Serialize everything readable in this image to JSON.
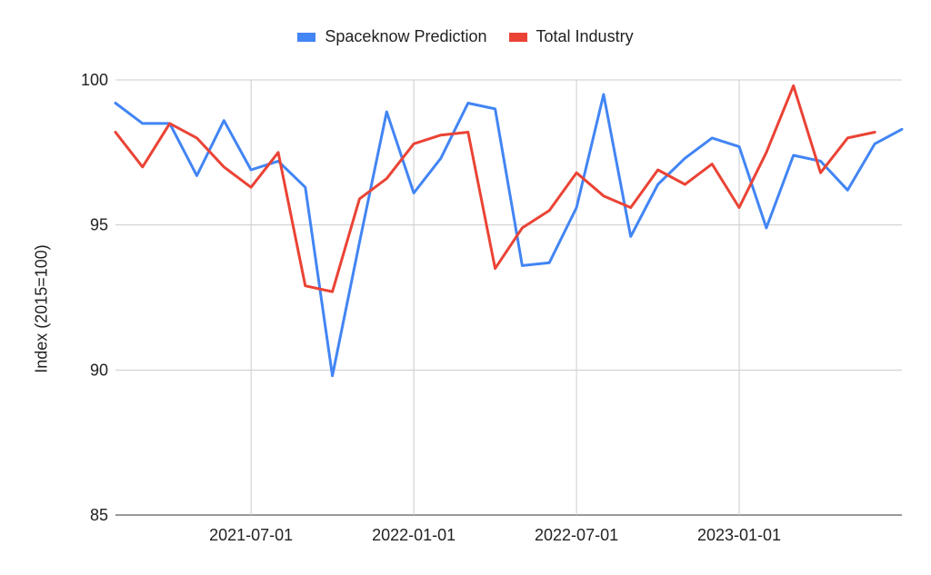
{
  "chart_data": {
    "type": "line",
    "title": "",
    "xlabel": "",
    "ylabel": "Index (2015=100)",
    "ylim": [
      85,
      100
    ],
    "yticks": [
      85,
      90,
      95,
      100
    ],
    "xtick_labels": [
      "2021-07-01",
      "2022-01-01",
      "2022-07-01",
      "2023-01-01"
    ],
    "xtick_indices": [
      5,
      11,
      17,
      23
    ],
    "legend_position": "top",
    "grid": true,
    "x": [
      "2021-02-01",
      "2021-03-01",
      "2021-04-01",
      "2021-05-01",
      "2021-06-01",
      "2021-07-01",
      "2021-08-01",
      "2021-09-01",
      "2021-10-01",
      "2021-11-01",
      "2021-12-01",
      "2022-01-01",
      "2022-02-01",
      "2022-03-01",
      "2022-04-01",
      "2022-05-01",
      "2022-06-01",
      "2022-07-01",
      "2022-08-01",
      "2022-09-01",
      "2022-10-01",
      "2022-11-01",
      "2022-12-01",
      "2023-01-01",
      "2023-02-01",
      "2023-03-01",
      "2023-04-01",
      "2023-05-01",
      "2023-06-01",
      "2023-07-01"
    ],
    "series": [
      {
        "name": "Spaceknow Prediction",
        "color": "#4285f4",
        "values": [
          99.2,
          98.5,
          98.5,
          96.7,
          98.6,
          96.9,
          97.2,
          96.3,
          89.8,
          94.4,
          98.9,
          96.1,
          97.3,
          99.2,
          99.0,
          93.6,
          93.7,
          95.6,
          99.5,
          94.6,
          96.4,
          97.3,
          98.0,
          97.7,
          94.9,
          97.4,
          97.2,
          96.2,
          97.8,
          98.3
        ]
      },
      {
        "name": "Total Industry",
        "color": "#ea4335",
        "values": [
          98.2,
          97.0,
          98.5,
          98.0,
          97.0,
          96.3,
          97.5,
          92.9,
          92.7,
          95.9,
          96.6,
          97.8,
          98.1,
          98.2,
          93.5,
          94.9,
          95.5,
          96.8,
          96.0,
          95.6,
          96.9,
          96.4,
          97.1,
          95.6,
          97.5,
          99.8,
          96.8,
          98.0,
          98.2,
          null
        ]
      }
    ]
  }
}
